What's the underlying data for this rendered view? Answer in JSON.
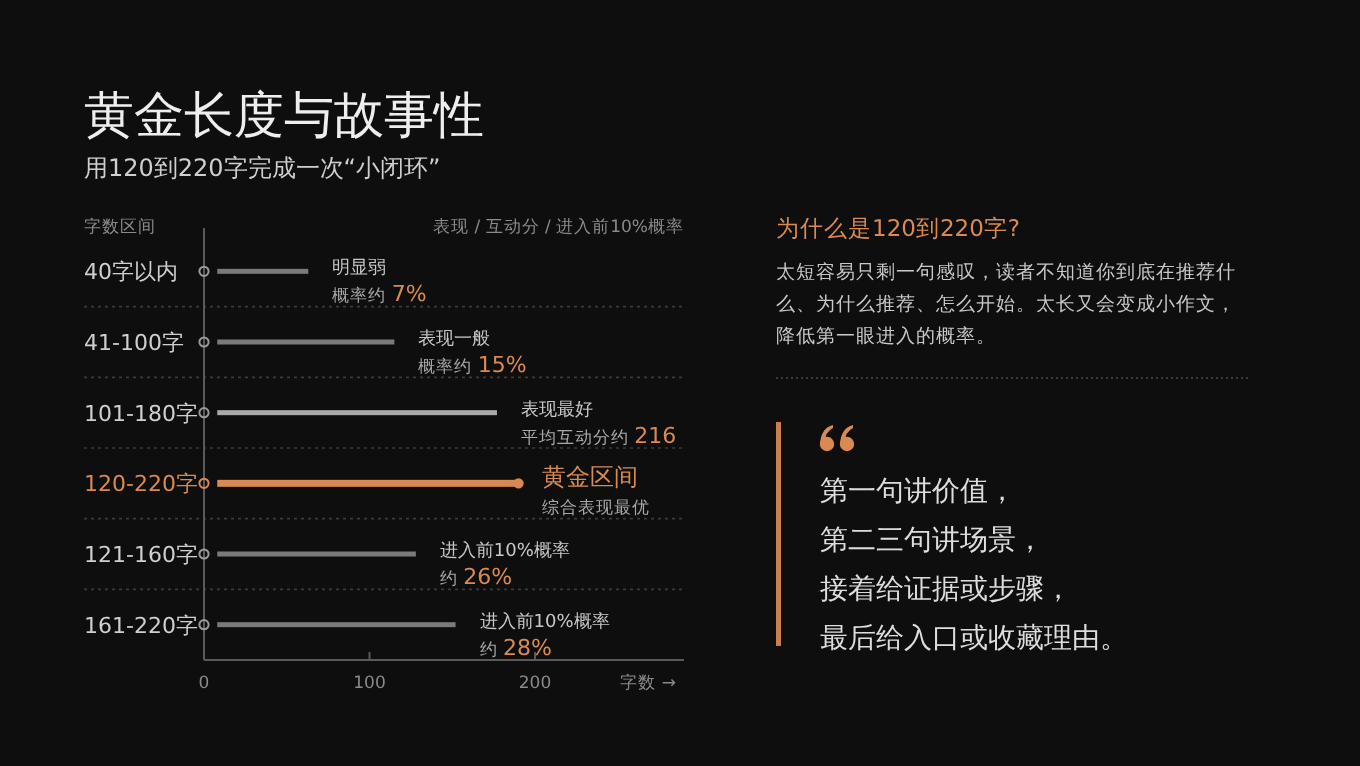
{
  "chart_data": {
    "type": "bar",
    "orientation": "horizontal",
    "title": "黄金长度与故事性",
    "subtitle": "用120到220字完成一次“小闭环”",
    "ylabel": "字数区间",
    "xlabel": "字数 →",
    "categories": [
      "40字以内",
      "41-100字",
      "101-180字",
      "120-220字",
      "121-160字",
      "161-220字"
    ],
    "base": [
      8,
      8,
      8,
      8,
      8,
      8
    ],
    "values": [
      55,
      107,
      169,
      182,
      120,
      144
    ],
    "colors": [
      "#7a7a7a",
      "#7a7a7a",
      "#a9a9a9",
      "#d98a52",
      "#7a7a7a",
      "#7a7a7a"
    ],
    "xlim": [
      0,
      290
    ],
    "xticks": [
      0,
      100,
      200
    ],
    "grid": "y",
    "annotations": [
      "表现 / 互动分 / 进入前10%概率",
      "为什么是120到220字?",
      "太短容易只剩一句感叹，读者不知道你到底在推荐什么、为什么推荐、怎么开始。太长又会变成小作文，降低第一眼进入的概率。",
      "第一句讲价值，",
      "第二三句讲场景，",
      "接着给证据或步骤，",
      "最后给入口或收藏理由。",
      {
        "text": "明显弱",
        "x": 63,
        "y": "40字以内"
      },
      {
        "text": "概率约 7%",
        "x": 63,
        "y": "40字以内"
      },
      {
        "text": "表现一般",
        "x": 115,
        "y": "41-100字"
      },
      {
        "text": "概率约 15%",
        "x": 115,
        "y": "41-100字"
      },
      {
        "text": "表现最好",
        "x": 177,
        "y": "101-180字"
      },
      {
        "text": "平均互动分约 216",
        "x": 177,
        "y": "101-180字"
      },
      {
        "text": "黄金区间",
        "x": 190,
        "y": "120-220字"
      },
      {
        "text": "综合表现最优",
        "x": 190,
        "y": "120-220字"
      },
      {
        "text": "进入前10%概率",
        "x": 128,
        "y": "121-160字"
      },
      {
        "text": "约 26%",
        "x": 128,
        "y": "121-160字"
      },
      {
        "text": "进入前10%概率",
        "x": 152,
        "y": "161-220字"
      },
      {
        "text": "约 28%",
        "x": 152,
        "y": "161-220字"
      }
    ]
  }
}
